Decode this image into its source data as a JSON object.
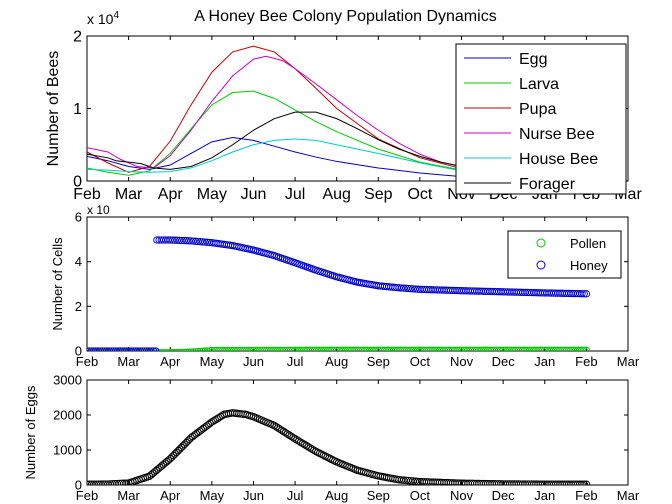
{
  "chart_data": [
    {
      "type": "line",
      "title": "A Honey Bee Colony Population Dynamics",
      "ylabel": "Number of Bees",
      "y_exponent": "x 10",
      "y_exponent_power": "4",
      "x_ticks": [
        "Feb",
        "Mar",
        "Apr",
        "May",
        "Jun",
        "Jul",
        "Aug",
        "Sep",
        "Oct",
        "Nov",
        "Dec",
        "Jan",
        "Feb",
        "Mar"
      ],
      "xlim": [
        0,
        13
      ],
      "y_ticks": [
        "0",
        "1",
        "2"
      ],
      "ylim": [
        0,
        2
      ],
      "legend_position": "top-right",
      "series": [
        {
          "name": "Egg",
          "color": "#0000cc",
          "points": [
            [
              0,
              0.34
            ],
            [
              0.5,
              0.28
            ],
            [
              1,
              0.2
            ],
            [
              1.5,
              0.16
            ],
            [
              2,
              0.22
            ],
            [
              2.5,
              0.38
            ],
            [
              3,
              0.54
            ],
            [
              3.5,
              0.6
            ],
            [
              4,
              0.56
            ],
            [
              4.5,
              0.48
            ],
            [
              5,
              0.4
            ],
            [
              5.5,
              0.33
            ],
            [
              6,
              0.27
            ],
            [
              7,
              0.18
            ],
            [
              8,
              0.11
            ],
            [
              9,
              0.06
            ],
            [
              10,
              0.03
            ],
            [
              11,
              0.015
            ],
            [
              12,
              0.01
            ]
          ]
        },
        {
          "name": "Larva",
          "color": "#00cc00",
          "points": [
            [
              0,
              0.18
            ],
            [
              0.5,
              0.12
            ],
            [
              1,
              0.08
            ],
            [
              1.5,
              0.14
            ],
            [
              2,
              0.38
            ],
            [
              2.5,
              0.72
            ],
            [
              3,
              1.05
            ],
            [
              3.5,
              1.22
            ],
            [
              4,
              1.24
            ],
            [
              4.5,
              1.14
            ],
            [
              5,
              0.98
            ],
            [
              5.5,
              0.82
            ],
            [
              6,
              0.68
            ],
            [
              7,
              0.44
            ],
            [
              8,
              0.26
            ],
            [
              9,
              0.15
            ],
            [
              10,
              0.08
            ],
            [
              11,
              0.04
            ],
            [
              12,
              0.02
            ]
          ]
        },
        {
          "name": "Pupa",
          "color": "#cc0000",
          "points": [
            [
              0,
              0.4
            ],
            [
              0.5,
              0.25
            ],
            [
              1,
              0.12
            ],
            [
              1.5,
              0.2
            ],
            [
              2,
              0.55
            ],
            [
              2.5,
              1.05
            ],
            [
              3,
              1.5
            ],
            [
              3.5,
              1.78
            ],
            [
              4,
              1.86
            ],
            [
              4.5,
              1.78
            ],
            [
              5,
              1.55
            ],
            [
              5.5,
              1.28
            ],
            [
              6,
              1.0
            ],
            [
              7,
              0.58
            ],
            [
              8,
              0.32
            ],
            [
              9,
              0.17
            ],
            [
              10,
              0.09
            ],
            [
              11,
              0.05
            ],
            [
              12,
              0.03
            ]
          ]
        },
        {
          "name": "Nurse Bee",
          "color": "#cc00cc",
          "points": [
            [
              0,
              0.46
            ],
            [
              0.5,
              0.4
            ],
            [
              0.8,
              0.3
            ],
            [
              1.2,
              0.2
            ],
            [
              1.6,
              0.18
            ],
            [
              2,
              0.35
            ],
            [
              2.5,
              0.7
            ],
            [
              3,
              1.1
            ],
            [
              3.5,
              1.45
            ],
            [
              4,
              1.68
            ],
            [
              4.3,
              1.72
            ],
            [
              4.7,
              1.66
            ],
            [
              5,
              1.55
            ],
            [
              5.5,
              1.34
            ],
            [
              6,
              1.12
            ],
            [
              6.5,
              0.9
            ],
            [
              7,
              0.7
            ],
            [
              7.5,
              0.52
            ],
            [
              8,
              0.37
            ],
            [
              8.5,
              0.26
            ],
            [
              8.98,
              0.2
            ],
            [
              9,
              0.75
            ],
            [
              10,
              0.82
            ],
            [
              11,
              0.86
            ],
            [
              12,
              0.88
            ]
          ]
        },
        {
          "name": "House Bee",
          "color": "#00cccc",
          "points": [
            [
              0,
              0.16
            ],
            [
              0.5,
              0.15
            ],
            [
              1,
              0.13
            ],
            [
              1.5,
              0.12
            ],
            [
              2,
              0.13
            ],
            [
              2.5,
              0.18
            ],
            [
              3,
              0.28
            ],
            [
              3.5,
              0.4
            ],
            [
              4,
              0.5
            ],
            [
              4.5,
              0.56
            ],
            [
              5,
              0.58
            ],
            [
              5.5,
              0.56
            ],
            [
              6,
              0.5
            ],
            [
              7,
              0.38
            ],
            [
              8,
              0.25
            ],
            [
              9,
              0.14
            ],
            [
              10,
              0.07
            ],
            [
              11,
              0.04
            ],
            [
              12,
              0.02
            ]
          ]
        },
        {
          "name": "Forager",
          "color": "#000000",
          "points": [
            [
              0,
              0.37
            ],
            [
              0.5,
              0.32
            ],
            [
              0.7,
              0.28
            ],
            [
              1,
              0.26
            ],
            [
              1.3,
              0.24
            ],
            [
              1.6,
              0.18
            ],
            [
              2,
              0.16
            ],
            [
              2.5,
              0.2
            ],
            [
              3,
              0.32
            ],
            [
              3.5,
              0.5
            ],
            [
              4,
              0.7
            ],
            [
              4.5,
              0.86
            ],
            [
              5,
              0.95
            ],
            [
              5.5,
              0.95
            ],
            [
              6,
              0.86
            ],
            [
              6.5,
              0.72
            ],
            [
              7,
              0.57
            ],
            [
              7.5,
              0.44
            ],
            [
              8,
              0.34
            ],
            [
              8.5,
              0.26
            ],
            [
              9,
              0.2
            ],
            [
              10,
              0.12
            ],
            [
              11,
              0.07
            ],
            [
              12,
              0.05
            ]
          ]
        }
      ]
    },
    {
      "type": "scatter",
      "ylabel": "Number of Cells",
      "y_exponent": "x 10",
      "y_ticks": [
        "0",
        "2",
        "4",
        "6"
      ],
      "ylim": [
        0,
        6
      ],
      "x_ticks": [
        "Feb",
        "Mar",
        "Apr",
        "May",
        "Jun",
        "Jul",
        "Aug",
        "Sep",
        "Oct",
        "Nov",
        "Dec",
        "Jan",
        "Feb",
        "Mar"
      ],
      "xlim": [
        0,
        13
      ],
      "legend_position": "top-right",
      "series": [
        {
          "name": "Pollen",
          "color": "#00cc00",
          "points": [
            [
              0,
              0
            ],
            [
              1.65,
              0
            ],
            [
              1.7,
              -0.08
            ],
            [
              2,
              -0.08
            ],
            [
              2.5,
              -0.05
            ],
            [
              3,
              0.02
            ],
            [
              5,
              0.03
            ],
            [
              8,
              0.03
            ],
            [
              12,
              0.03
            ]
          ]
        },
        {
          "name": "Honey",
          "color": "#0000cc",
          "points": [
            [
              0,
              0
            ],
            [
              1.65,
              0
            ],
            [
              1.68,
              4.97
            ],
            [
              2,
              4.97
            ],
            [
              2.5,
              4.93
            ],
            [
              3,
              4.85
            ],
            [
              3.5,
              4.72
            ],
            [
              4,
              4.52
            ],
            [
              4.5,
              4.27
            ],
            [
              5,
              3.95
            ],
            [
              5.5,
              3.62
            ],
            [
              6,
              3.32
            ],
            [
              6.5,
              3.08
            ],
            [
              7,
              2.92
            ],
            [
              7.5,
              2.83
            ],
            [
              8,
              2.76
            ],
            [
              9,
              2.7
            ],
            [
              10,
              2.65
            ],
            [
              11,
              2.6
            ],
            [
              12,
              2.56
            ]
          ]
        }
      ]
    },
    {
      "type": "scatter",
      "ylabel": "Number of Eggs",
      "y_ticks": [
        "0",
        "1000",
        "2000",
        "3000"
      ],
      "ylim": [
        0,
        3000
      ],
      "x_ticks": [
        "Feb",
        "Mar",
        "Apr",
        "May",
        "Jun",
        "Jul",
        "Aug",
        "Sep",
        "Oct",
        "Nov",
        "Dec",
        "Jan",
        "Feb",
        "Mar"
      ],
      "xlim": [
        0,
        13
      ],
      "series": [
        {
          "color": "#000000",
          "points": [
            [
              0,
              20
            ],
            [
              0.5,
              25
            ],
            [
              1,
              55
            ],
            [
              1.5,
              250
            ],
            [
              2,
              750
            ],
            [
              2.5,
              1350
            ],
            [
              3,
              1800
            ],
            [
              3.3,
              2020
            ],
            [
              3.5,
              2060
            ],
            [
              3.8,
              2020
            ],
            [
              4,
              1950
            ],
            [
              4.5,
              1700
            ],
            [
              5,
              1320
            ],
            [
              5.5,
              960
            ],
            [
              6,
              660
            ],
            [
              6.5,
              420
            ],
            [
              7,
              260
            ],
            [
              7.5,
              150
            ],
            [
              8,
              95
            ],
            [
              9,
              50
            ],
            [
              10,
              30
            ],
            [
              11,
              22
            ],
            [
              12,
              20
            ]
          ]
        }
      ]
    }
  ]
}
